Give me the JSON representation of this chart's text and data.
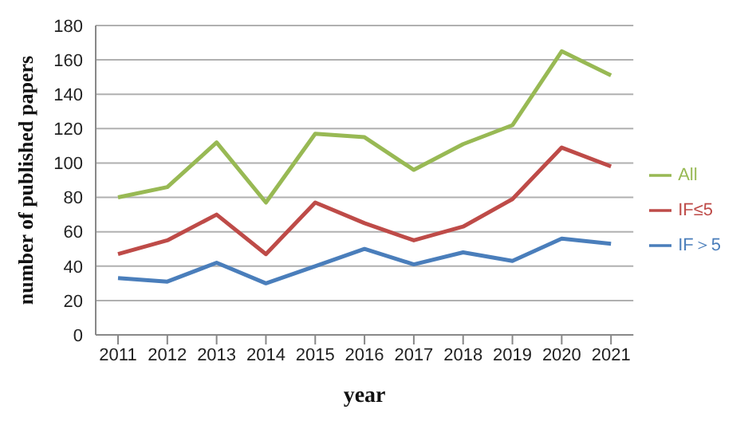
{
  "chart_data": {
    "type": "line",
    "xlabel": "year",
    "ylabel": "number of published papers",
    "categories": [
      "2011",
      "2012",
      "2013",
      "2014",
      "2015",
      "2016",
      "2017",
      "2018",
      "2019",
      "2020",
      "2021"
    ],
    "series": [
      {
        "name": "IF＞5",
        "color": "#4a7ebb",
        "values": [
          33,
          31,
          42,
          30,
          40,
          50,
          41,
          48,
          43,
          56,
          53
        ]
      },
      {
        "name": "IF≤5",
        "color": "#be4b48",
        "values": [
          47,
          55,
          70,
          47,
          77,
          65,
          55,
          63,
          79,
          109,
          98
        ]
      },
      {
        "name": "All",
        "color": "#98b954",
        "values": [
          80,
          86,
          112,
          77,
          117,
          115,
          96,
          111,
          122,
          165,
          151
        ]
      }
    ],
    "ylim": [
      0,
      180
    ],
    "yticks": [
      0,
      20,
      40,
      60,
      80,
      100,
      120,
      140,
      160,
      180
    ],
    "grid": "y",
    "legend": "right",
    "marker": "none",
    "line_style": "solid"
  }
}
